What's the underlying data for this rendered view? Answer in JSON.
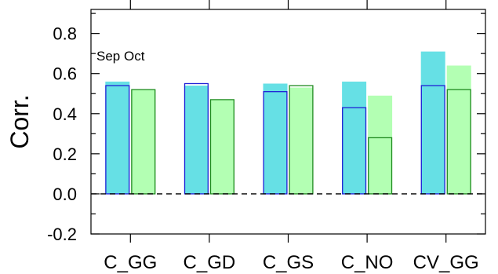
{
  "chart_data": {
    "type": "bar",
    "ylabel": "Corr.",
    "annotation": "Sep Oct",
    "ylim": [
      -0.2,
      0.92
    ],
    "yticks": [
      -0.2,
      0.0,
      0.2,
      0.4,
      0.6,
      0.8
    ],
    "ytick_labels": [
      "-0.2",
      "0.0",
      "0.2",
      "0.4",
      "0.6",
      "0.8"
    ],
    "categories": [
      "C_GG",
      "C_GD",
      "C_GS",
      "C_NO",
      "CV_GG"
    ],
    "series": [
      {
        "group": "Sep",
        "style": "filled",
        "color": "#66e0e5",
        "values": [
          0.56,
          0.54,
          0.55,
          0.56,
          0.71
        ]
      },
      {
        "group": "Sep",
        "style": "outline",
        "color": "#1f1fd6",
        "values": [
          0.54,
          0.55,
          0.51,
          0.43,
          0.54
        ]
      },
      {
        "group": "Oct",
        "style": "filled",
        "color": "#b3ffb3",
        "values": [
          0.52,
          0.47,
          0.53,
          0.49,
          0.64
        ]
      },
      {
        "group": "Oct",
        "style": "outline",
        "color": "#1f8a1f",
        "values": [
          0.52,
          0.47,
          0.54,
          0.28,
          0.52
        ]
      }
    ],
    "zero_line": "dashed",
    "grid": false
  }
}
